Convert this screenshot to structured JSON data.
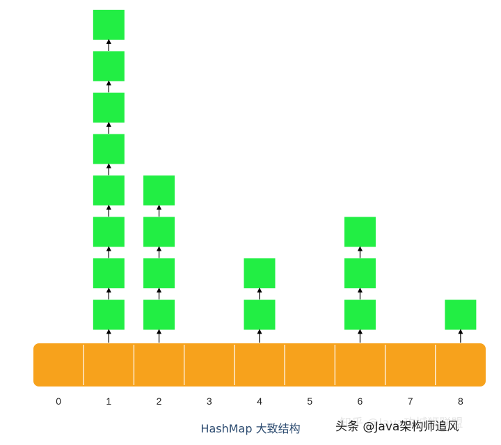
{
  "colors": {
    "node_fill": "#22ee44",
    "node_stroke": "#ffffff",
    "array_fill": "#f7a21c",
    "array_divider": "#ffffff",
    "arrow": "#000000",
    "index_text": "#222222",
    "caption_text": "#2b4a6f"
  },
  "diagram": {
    "caption": "HashMap 大致结构",
    "buckets": [
      {
        "index": "0",
        "chain_length": 0
      },
      {
        "index": "1",
        "chain_length": 8
      },
      {
        "index": "2",
        "chain_length": 4
      },
      {
        "index": "3",
        "chain_length": 0
      },
      {
        "index": "4",
        "chain_length": 2
      },
      {
        "index": "5",
        "chain_length": 0
      },
      {
        "index": "6",
        "chain_length": 3
      },
      {
        "index": "7",
        "chain_length": 0
      },
      {
        "index": "8",
        "chain_length": 1
      }
    ]
  },
  "watermark": {
    "text": "头条 @Java架构师追风",
    "ghost_text": "知乎 @Java攻城狮联盟"
  }
}
